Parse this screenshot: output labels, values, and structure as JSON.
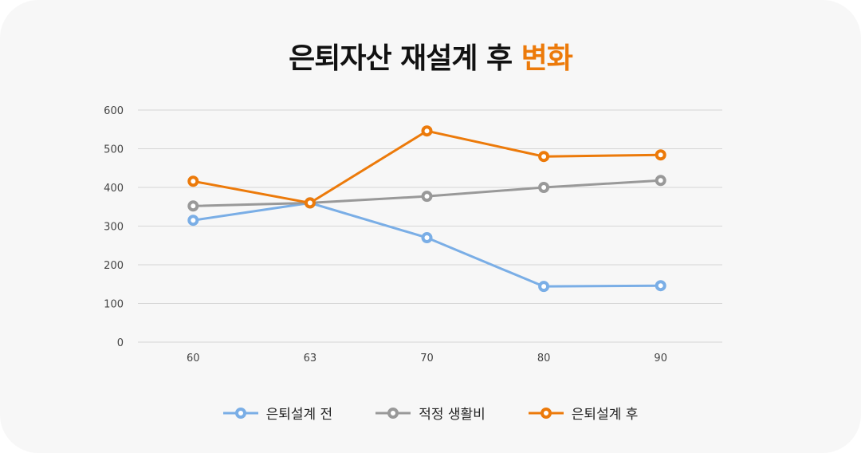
{
  "title": {
    "main": "은퇴자산 재설계 후",
    "highlight": "변화",
    "highlight_color": "#ec7a0a"
  },
  "chart_data": {
    "type": "line",
    "categories": [
      "60",
      "63",
      "70",
      "80",
      "90"
    ],
    "ylim": [
      0,
      600
    ],
    "yticks": [
      "0",
      "100",
      "200",
      "300",
      "400",
      "500",
      "600"
    ],
    "grid": true,
    "legend": "bottom",
    "series": [
      {
        "name": "은퇴설계 전",
        "color": "#7aaee6",
        "values": [
          315,
          360,
          270,
          144,
          146
        ]
      },
      {
        "name": "적정 생활비",
        "color": "#999999",
        "values": [
          352,
          360,
          377,
          400,
          418
        ]
      },
      {
        "name": "은퇴설계 후",
        "color": "#ec7a0a",
        "values": [
          416,
          360,
          546,
          480,
          484
        ]
      }
    ]
  }
}
